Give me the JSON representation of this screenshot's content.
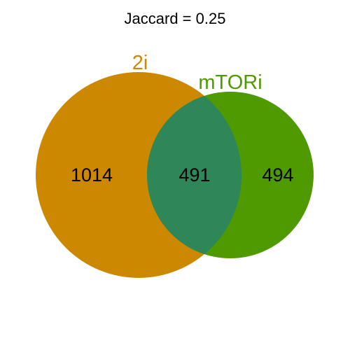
{
  "title": "Jaccard = 0.25",
  "sets": [
    {
      "name": "2i",
      "color": "#cc8800"
    },
    {
      "name": "mTORi",
      "color": "#4e9a00"
    }
  ],
  "overlap_color": "#2e8659",
  "counts": {
    "only_2i": "1014",
    "both": "491",
    "only_mtori": "494"
  }
}
